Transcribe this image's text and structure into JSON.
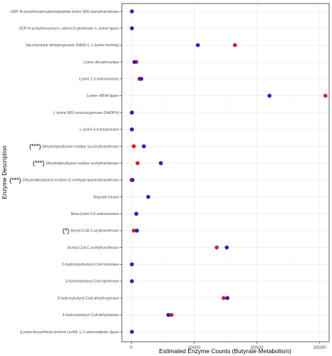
{
  "chart_data": {
    "type": "scatter",
    "title": "",
    "xlabel": "Estimated Enzyme Counts (Butyrate Metabolism)",
    "ylabel": "Enzyme Description",
    "xlim": [
      -1500,
      31500
    ],
    "xticks": [
      0,
      10000,
      20000,
      30000
    ],
    "grid": true,
    "legend": "none",
    "colors": {
      "series_a": "#e31a1c",
      "series_b": "#1f1fd6"
    },
    "categories": [
      {
        "label": "UDP-N-acetylmuramoylpentapeptide-lysine N(6)-alanyltransferase",
        "sig": "",
        "a": null,
        "b": 100
      },
      {
        "label": "UDP-N-acetylmuramoyl-L-alanyl-D-glutamate--L-lysine ligase",
        "sig": "",
        "a": null,
        "b": 100
      },
      {
        "label": "Saccharopine dehydrogenase (NAD(+), L-lysine-forming)",
        "sig": "",
        "a": 16500,
        "b": 10600
      },
      {
        "label": "Lysine decarboxylase",
        "sig": "",
        "a": 800,
        "b": 500
      },
      {
        "label": "Lysine 2,3-aminomutase",
        "sig": "",
        "a": 1300,
        "b": 1600
      },
      {
        "label": "Lysine--tRNA ligase",
        "sig": "",
        "a": 30900,
        "b": 22000
      },
      {
        "label": "L-lysine N(6)-monooxygenase (NADPH)",
        "sig": "",
        "a": null,
        "b": 100
      },
      {
        "label": "L-lysine 6-transaminase",
        "sig": "",
        "a": null,
        "b": 100
      },
      {
        "label": "Dihydrolipoyllysine-residue succinyltransferase",
        "sig": "(***)",
        "a": 400,
        "b": 2000
      },
      {
        "label": "Dihydrolipoyllysine-residue acetyltransferase",
        "sig": "(***)",
        "a": 1000,
        "b": 4700
      },
      {
        "label": "Dihydrolipoyllysine-residue (2-methylpropanoyl)transferase",
        "sig": "(***)",
        "a": 50,
        "b": 200
      },
      {
        "label": "Butyrate kinase",
        "sig": "",
        "a": null,
        "b": 2700
      },
      {
        "label": "Beta-lysine 5,6-aminomutase",
        "sig": "",
        "a": null,
        "b": 800
      },
      {
        "label": "Acetyl-CoA C-acyltransferase",
        "sig": "(*)",
        "a": 400,
        "b": 900
      },
      {
        "label": "Acetyl-CoA C-acetyltransferase",
        "sig": "",
        "a": 13600,
        "b": 15200
      },
      {
        "label": "3-hydroxyisobutyryl-CoA hydrolase",
        "sig": "",
        "a": null,
        "b": 100
      },
      {
        "label": "3-hydroxybutyryl-CoA epimerase",
        "sig": "",
        "a": null,
        "b": 100
      },
      {
        "label": "3-hydroxybutyryl-CoA dehydrogenase",
        "sig": "",
        "a": 14700,
        "b": 15300
      },
      {
        "label": "3-hydroxybutyryl-CoA dehydratase",
        "sig": "",
        "a": 6400,
        "b": 5900
      },
      {
        "label": "[Lysine-biosynthesis-protein LysW]--L-2-aminoadipate ligase",
        "sig": "",
        "a": null,
        "b": 100
      }
    ]
  }
}
